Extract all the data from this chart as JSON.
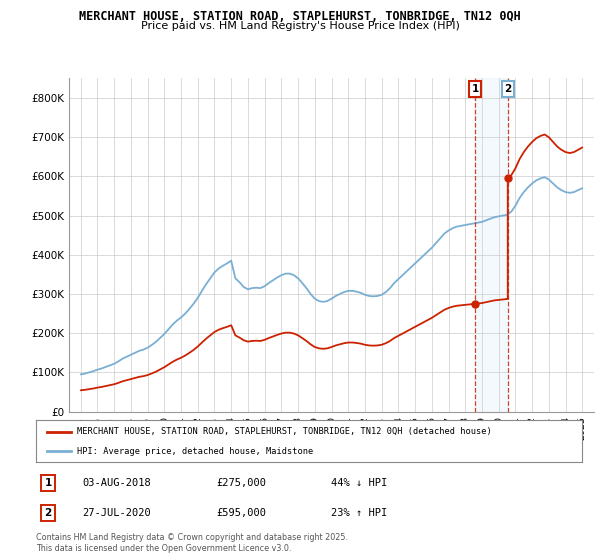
{
  "title_line1": "MERCHANT HOUSE, STATION ROAD, STAPLEHURST, TONBRIDGE, TN12 0QH",
  "title_line2": "Price paid vs. HM Land Registry's House Price Index (HPI)",
  "ylim": [
    0,
    850000
  ],
  "yticks": [
    0,
    100000,
    200000,
    300000,
    400000,
    500000,
    600000,
    700000,
    800000
  ],
  "ytick_labels": [
    "£0",
    "£100K",
    "£200K",
    "£300K",
    "£400K",
    "£500K",
    "£600K",
    "£700K",
    "£800K"
  ],
  "hpi_color": "#7aafd4",
  "price_color": "#cc2200",
  "t1_year": 2018.583,
  "t2_year": 2020.542,
  "t1_price": 275000,
  "t2_price": 595000,
  "transaction1": {
    "date": "03-AUG-2018",
    "price": 275000,
    "hpi_pct": "44% ↓ HPI"
  },
  "transaction2": {
    "date": "27-JUL-2020",
    "price": 595000,
    "hpi_pct": "23% ↑ HPI"
  },
  "legend_line1": "MERCHANT HOUSE, STATION ROAD, STAPLEHURST, TONBRIDGE, TN12 0QH (detached house)",
  "legend_line2": "HPI: Average price, detached house, Maidstone",
  "footnote": "Contains HM Land Registry data © Crown copyright and database right 2025.\nThis data is licensed under the Open Government Licence v3.0.",
  "hpi_years": [
    1995.0,
    1995.25,
    1995.5,
    1995.75,
    1996.0,
    1996.25,
    1996.5,
    1996.75,
    1997.0,
    1997.25,
    1997.5,
    1997.75,
    1998.0,
    1998.25,
    1998.5,
    1998.75,
    1999.0,
    1999.25,
    1999.5,
    1999.75,
    2000.0,
    2000.25,
    2000.5,
    2000.75,
    2001.0,
    2001.25,
    2001.5,
    2001.75,
    2002.0,
    2002.25,
    2002.5,
    2002.75,
    2003.0,
    2003.25,
    2003.5,
    2003.75,
    2004.0,
    2004.25,
    2004.5,
    2004.75,
    2005.0,
    2005.25,
    2005.5,
    2005.75,
    2006.0,
    2006.25,
    2006.5,
    2006.75,
    2007.0,
    2007.25,
    2007.5,
    2007.75,
    2008.0,
    2008.25,
    2008.5,
    2008.75,
    2009.0,
    2009.25,
    2009.5,
    2009.75,
    2010.0,
    2010.25,
    2010.5,
    2010.75,
    2011.0,
    2011.25,
    2011.5,
    2011.75,
    2012.0,
    2012.25,
    2012.5,
    2012.75,
    2013.0,
    2013.25,
    2013.5,
    2013.75,
    2014.0,
    2014.25,
    2014.5,
    2014.75,
    2015.0,
    2015.25,
    2015.5,
    2015.75,
    2016.0,
    2016.25,
    2016.5,
    2016.75,
    2017.0,
    2017.25,
    2017.5,
    2017.75,
    2018.0,
    2018.25,
    2018.5,
    2018.75,
    2019.0,
    2019.25,
    2019.5,
    2019.75,
    2020.0,
    2020.25,
    2020.5,
    2020.75,
    2021.0,
    2021.25,
    2021.5,
    2021.75,
    2022.0,
    2022.25,
    2022.5,
    2022.75,
    2023.0,
    2023.25,
    2023.5,
    2023.75,
    2024.0,
    2024.25,
    2024.5,
    2024.75,
    2025.0
  ],
  "hpi_values": [
    95000,
    97000,
    100000,
    103000,
    107000,
    110000,
    114000,
    118000,
    122000,
    128000,
    135000,
    140000,
    145000,
    150000,
    155000,
    158000,
    163000,
    170000,
    178000,
    188000,
    198000,
    210000,
    222000,
    232000,
    240000,
    250000,
    262000,
    275000,
    290000,
    308000,
    325000,
    340000,
    355000,
    365000,
    372000,
    378000,
    385000,
    340000,
    330000,
    318000,
    312000,
    315000,
    316000,
    315000,
    320000,
    328000,
    335000,
    342000,
    348000,
    352000,
    352000,
    348000,
    340000,
    328000,
    315000,
    300000,
    288000,
    282000,
    280000,
    282000,
    288000,
    295000,
    300000,
    305000,
    308000,
    308000,
    306000,
    303000,
    298000,
    295000,
    294000,
    295000,
    298000,
    305000,
    315000,
    328000,
    338000,
    348000,
    358000,
    368000,
    378000,
    388000,
    398000,
    408000,
    418000,
    430000,
    442000,
    454000,
    462000,
    468000,
    472000,
    474000,
    476000,
    478000,
    480000,
    482000,
    484000,
    488000,
    492000,
    496000,
    498000,
    500000,
    502000,
    510000,
    525000,
    545000,
    560000,
    572000,
    582000,
    590000,
    595000,
    598000,
    592000,
    582000,
    572000,
    565000,
    560000,
    558000,
    560000,
    565000,
    570000
  ],
  "xlim_left": 1994.3,
  "xlim_right": 2025.7
}
